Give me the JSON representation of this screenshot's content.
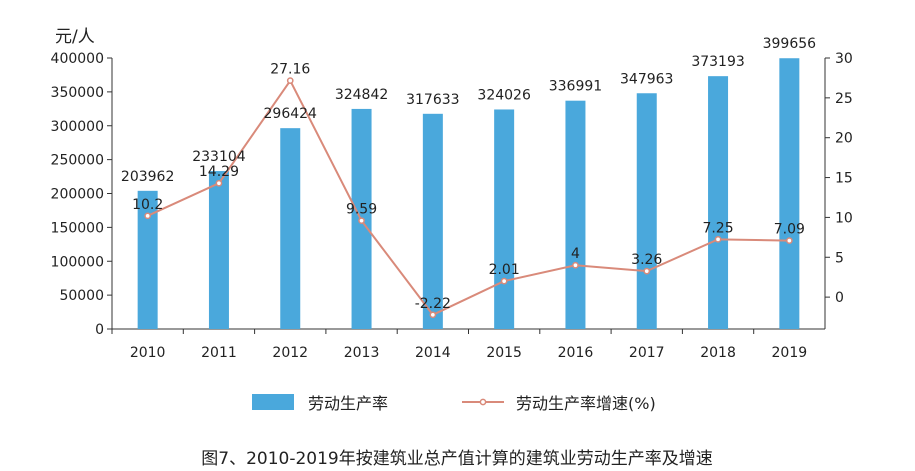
{
  "chart_data": {
    "type": "bar",
    "categories": [
      "2010",
      "2011",
      "2012",
      "2013",
      "2014",
      "2015",
      "2016",
      "2017",
      "2018",
      "2019"
    ],
    "series": [
      {
        "name": "劳动生产率",
        "type": "bar",
        "axis": "left",
        "color": "#4aa8dc",
        "values": [
          203962,
          233104,
          296424,
          324842,
          317633,
          324026,
          336991,
          347963,
          373193,
          399656
        ]
      },
      {
        "name": "劳动生产率增速(%)",
        "type": "line",
        "axis": "right",
        "color": "#d98a7a",
        "values": [
          10.2,
          14.29,
          27.16,
          9.59,
          -2.22,
          2.01,
          4,
          3.26,
          7.25,
          7.09
        ]
      }
    ],
    "ylabel": "元/人",
    "ylim": [
      0,
      400000
    ],
    "yticks": [
      0,
      50000,
      100000,
      150000,
      200000,
      250000,
      300000,
      350000,
      400000
    ],
    "y2lim": [
      -4,
      30
    ],
    "y2ticks": [
      0,
      5,
      10,
      15,
      20,
      25,
      30
    ],
    "legend_position": "bottom",
    "grid": false,
    "title": "图7、2010-2019年按建筑业总产值计算的建筑业劳动生产率及增速"
  }
}
